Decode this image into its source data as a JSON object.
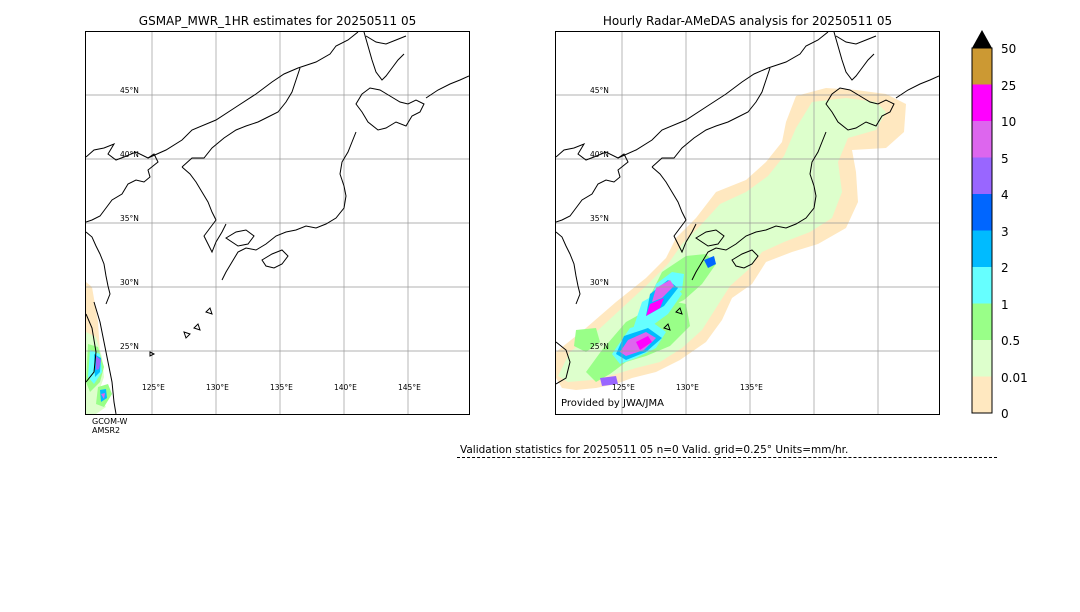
{
  "left_panel": {
    "title": "GSMAP_MWR_1HR estimates for 20250511 05",
    "satellite_label_line1": "GCOM-W",
    "satellite_label_line2": "AMSR2",
    "lat_labels": [
      "45°N",
      "40°N",
      "35°N",
      "30°N",
      "25°N"
    ],
    "lon_labels": [
      "125°E",
      "130°E",
      "135°E",
      "140°E",
      "145°E"
    ]
  },
  "right_panel": {
    "title": "Hourly Radar-AMeDAS analysis for 20250511 05",
    "credit": "Provided by JWA/JMA",
    "lat_labels": [
      "45°N",
      "40°N",
      "35°N",
      "30°N",
      "25°N"
    ],
    "lon_labels": [
      "125°E",
      "130°E",
      "135°E"
    ]
  },
  "colorbar": {
    "labels": [
      "50",
      "25",
      "10",
      "5",
      "4",
      "3",
      "2",
      "1",
      "0.5",
      "0.01",
      "0"
    ],
    "colors": [
      "#cc9933",
      "#ff00ff",
      "#dd66ee",
      "#9966ff",
      "#0066ff",
      "#00bbff",
      "#66ffff",
      "#99ff88",
      "#ddffcc",
      "#ffe8c0"
    ],
    "extend_color": "#000000"
  },
  "validation": {
    "text": "Validation statistics for 20250511 05  n=0 Valid. grid=0.25° Units=mm/hr."
  }
}
